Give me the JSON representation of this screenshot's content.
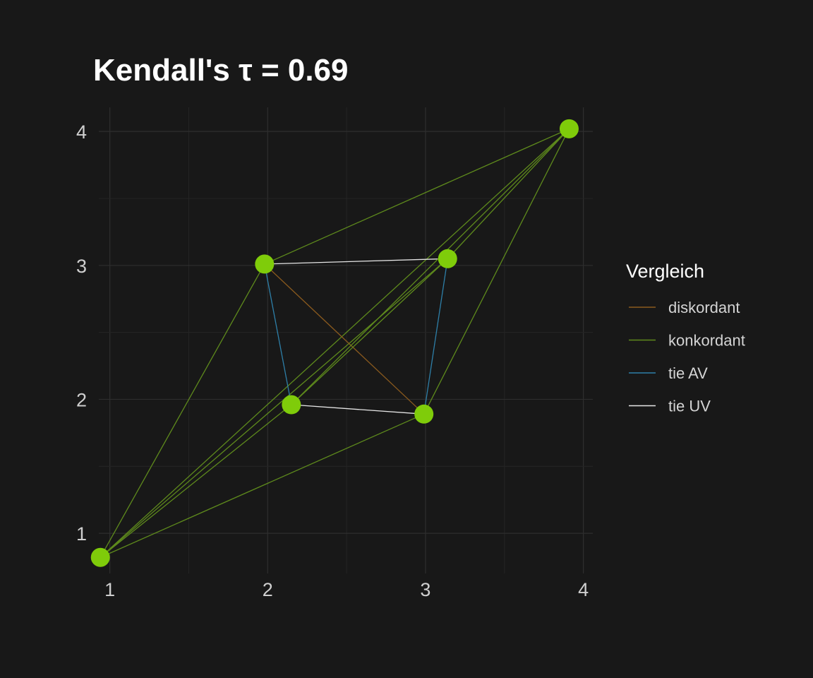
{
  "chart_data": {
    "type": "scatter",
    "title": "Kendall's τ =  0.69",
    "xlabel": "",
    "ylabel": "",
    "xlim": [
      0.93,
      4.06
    ],
    "ylim": [
      0.7,
      4.18
    ],
    "x_ticks": [
      "1",
      "2",
      "3",
      "4"
    ],
    "y_ticks": [
      "1",
      "2",
      "3",
      "4"
    ],
    "grid": true,
    "points": [
      {
        "x": 0.94,
        "y": 0.82
      },
      {
        "x": 1.98,
        "y": 3.01
      },
      {
        "x": 2.15,
        "y": 1.96
      },
      {
        "x": 2.99,
        "y": 1.89
      },
      {
        "x": 3.14,
        "y": 3.05
      },
      {
        "x": 3.91,
        "y": 4.02
      }
    ],
    "point_color": "#7FCC0A",
    "pairs": [
      {
        "from": 0,
        "to": 1,
        "type": "konkordant"
      },
      {
        "from": 0,
        "to": 2,
        "type": "konkordant"
      },
      {
        "from": 0,
        "to": 3,
        "type": "konkordant"
      },
      {
        "from": 0,
        "to": 4,
        "type": "konkordant"
      },
      {
        "from": 0,
        "to": 5,
        "type": "konkordant"
      },
      {
        "from": 1,
        "to": 2,
        "type": "tie AV"
      },
      {
        "from": 1,
        "to": 3,
        "type": "diskordant"
      },
      {
        "from": 1,
        "to": 4,
        "type": "tie UV"
      },
      {
        "from": 1,
        "to": 5,
        "type": "konkordant"
      },
      {
        "from": 2,
        "to": 3,
        "type": "tie UV"
      },
      {
        "from": 2,
        "to": 4,
        "type": "konkordant"
      },
      {
        "from": 2,
        "to": 5,
        "type": "konkordant"
      },
      {
        "from": 3,
        "to": 4,
        "type": "tie AV"
      },
      {
        "from": 3,
        "to": 5,
        "type": "konkordant"
      },
      {
        "from": 4,
        "to": 5,
        "type": "konkordant"
      }
    ],
    "legend": {
      "title": "Vergleich",
      "placement": "right",
      "entries": [
        {
          "label": "diskordant",
          "color": "#8A5A1E"
        },
        {
          "label": "konkordant",
          "color": "#5E8A1C"
        },
        {
          "label": "tie AV",
          "color": "#2E7FA8"
        },
        {
          "label": "tie UV",
          "color": "#E6E6E6"
        }
      ]
    }
  }
}
